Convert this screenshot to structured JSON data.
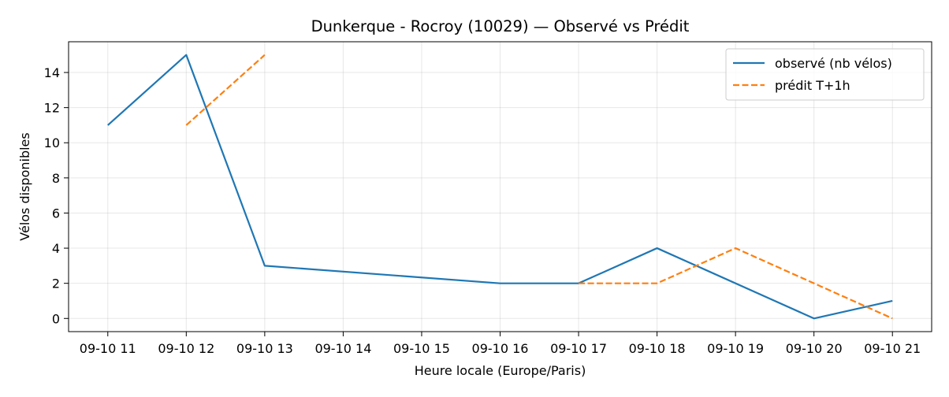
{
  "chart_data": {
    "type": "line",
    "title": "Dunkerque - Rocroy (10029) — Observé vs Prédit",
    "xlabel": "Heure locale (Europe/Paris)",
    "ylabel": "Vélos disponibles",
    "x_ticks": [
      "09-10 11",
      "09-10 12",
      "09-10 13",
      "09-10 14",
      "09-10 15",
      "09-10 16",
      "09-10 17",
      "09-10 18",
      "09-10 19",
      "09-10 20",
      "09-10 21"
    ],
    "y_ticks": [
      0,
      2,
      4,
      6,
      8,
      10,
      12,
      14
    ],
    "ylim": [
      -0.75,
      15.75
    ],
    "xlim": [
      "09-10 10:30",
      "09-10 21:30"
    ],
    "grid": true,
    "legend_position": "top-right",
    "series": [
      {
        "name": "observé (nb vélos)",
        "color": "#1f77b4",
        "style": "solid",
        "x": [
          "09-10 11",
          "09-10 12",
          "09-10 13",
          "09-10 16",
          "09-10 17",
          "09-10 18",
          "09-10 20",
          "09-10 21"
        ],
        "values": [
          11,
          15,
          3,
          2,
          2,
          4,
          0,
          1
        ]
      },
      {
        "name": "prédit T+1h",
        "color": "#ff7f0e",
        "style": "dashed",
        "segments": [
          {
            "x": [
              "09-10 12",
              "09-10 13"
            ],
            "values": [
              11,
              15
            ]
          },
          {
            "x": [
              "09-10 17",
              "09-10 18",
              "09-10 19",
              "09-10 20",
              "09-10 21"
            ],
            "values": [
              2,
              2,
              4,
              2,
              0
            ]
          }
        ]
      }
    ]
  }
}
